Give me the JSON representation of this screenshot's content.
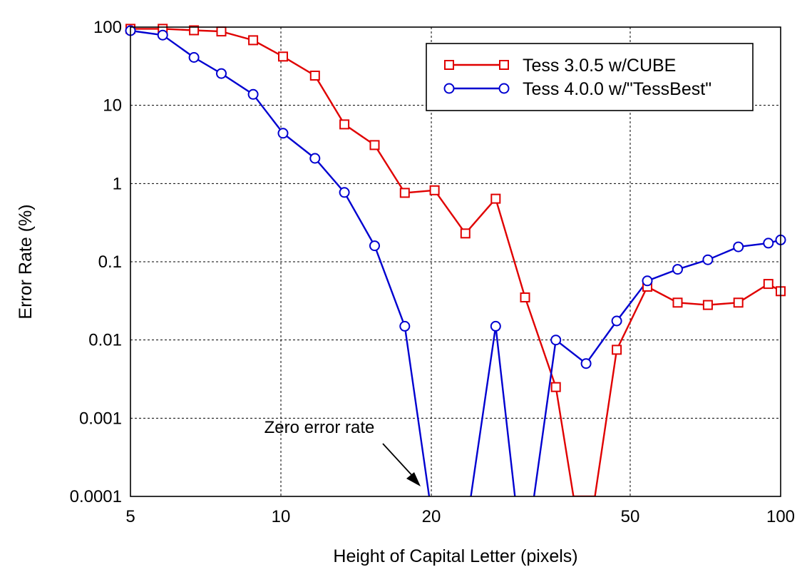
{
  "chart_data": {
    "type": "line",
    "xlabel": "Height of Capital Letter (pixels)",
    "ylabel": "Error Rate (%)",
    "x_scale": "log",
    "y_scale": "log",
    "xlim": [
      5,
      100
    ],
    "ylim": [
      0.0001,
      100
    ],
    "x_ticks": [
      5,
      10,
      20,
      50,
      100
    ],
    "x_tick_labels": [
      "5",
      "10",
      "20",
      "50",
      "100"
    ],
    "y_ticks": [
      0.0001,
      0.001,
      0.01,
      0.1,
      1,
      10,
      100
    ],
    "y_tick_labels": [
      "0.0001",
      "0.001",
      "0.01",
      "0.1",
      "1",
      "10",
      "100"
    ],
    "grid": true,
    "legend_position": "top-right",
    "annotation": {
      "text": "Zero error rate",
      "x": 19.5,
      "y": 0.0001
    },
    "series": [
      {
        "name": "Tess 3.0.5 w/CUBE",
        "color": "#e00000",
        "marker": "square",
        "points": [
          [
            5,
            95
          ],
          [
            5.8,
            95
          ],
          [
            6.7,
            91
          ],
          [
            7.6,
            88
          ],
          [
            8.8,
            68
          ],
          [
            10.1,
            42
          ],
          [
            11.7,
            24
          ],
          [
            13.4,
            5.7
          ],
          [
            15.4,
            3.1
          ],
          [
            17.7,
            0.76
          ],
          [
            20.3,
            0.82
          ],
          [
            23.4,
            0.23
          ],
          [
            26.9,
            0.64
          ],
          [
            30.8,
            0.035
          ],
          [
            35.5,
            0.0025
          ],
          [
            47.0,
            0.0075
          ],
          [
            54.1,
            0.048
          ],
          [
            62.2,
            0.03
          ],
          [
            71.5,
            0.028
          ],
          [
            82.3,
            0.03
          ],
          [
            94.5,
            0.052
          ],
          [
            100,
            0.042
          ]
        ],
        "line_path": [
          [
            5,
            95
          ],
          [
            5.8,
            95
          ],
          [
            6.7,
            91
          ],
          [
            7.6,
            88
          ],
          [
            8.8,
            68
          ],
          [
            10.1,
            42
          ],
          [
            11.7,
            24
          ],
          [
            13.4,
            5.7
          ],
          [
            15.4,
            3.1
          ],
          [
            17.7,
            0.76
          ],
          [
            20.3,
            0.82
          ],
          [
            23.4,
            0.23
          ],
          [
            26.9,
            0.64
          ],
          [
            30.8,
            0.035
          ],
          [
            35.5,
            0.0025
          ],
          [
            38.5,
            0.0001
          ],
          [
            42.5,
            0.0001
          ],
          [
            47.0,
            0.0075
          ],
          [
            54.1,
            0.048
          ],
          [
            62.2,
            0.03
          ],
          [
            71.5,
            0.028
          ],
          [
            82.3,
            0.03
          ],
          [
            94.5,
            0.052
          ],
          [
            100,
            0.042
          ]
        ]
      },
      {
        "name": "Tess 4.0.0 w/\"TessBest\"",
        "color": "#0000d0",
        "marker": "circle",
        "points": [
          [
            5,
            90
          ],
          [
            5.8,
            79
          ],
          [
            6.7,
            41
          ],
          [
            7.6,
            25.5
          ],
          [
            8.8,
            13.8
          ],
          [
            10.1,
            4.4
          ],
          [
            11.7,
            2.1
          ],
          [
            13.4,
            0.77
          ],
          [
            15.4,
            0.16
          ],
          [
            17.7,
            0.015
          ],
          [
            26.9,
            0.015
          ],
          [
            35.5,
            0.01
          ],
          [
            40.8,
            0.005
          ],
          [
            47.0,
            0.0175
          ],
          [
            54.1,
            0.057
          ],
          [
            62.2,
            0.08
          ],
          [
            71.5,
            0.106
          ],
          [
            82.3,
            0.155
          ],
          [
            94.5,
            0.173
          ],
          [
            100,
            0.19
          ]
        ],
        "line_path": [
          [
            5,
            90
          ],
          [
            5.8,
            79
          ],
          [
            6.7,
            41
          ],
          [
            7.6,
            25.5
          ],
          [
            8.8,
            13.8
          ],
          [
            10.1,
            4.4
          ],
          [
            11.7,
            2.1
          ],
          [
            13.4,
            0.77
          ],
          [
            15.4,
            0.16
          ],
          [
            17.7,
            0.015
          ],
          [
            19.8,
            0.0001
          ],
          null,
          [
            24.0,
            0.0001
          ],
          [
            26.9,
            0.015
          ],
          [
            29.4,
            0.0001
          ],
          null,
          [
            32.1,
            0.0001
          ],
          [
            35.5,
            0.01
          ],
          [
            40.8,
            0.005
          ],
          [
            47.0,
            0.0175
          ],
          [
            54.1,
            0.057
          ],
          [
            62.2,
            0.08
          ],
          [
            71.5,
            0.106
          ],
          [
            82.3,
            0.155
          ],
          [
            94.5,
            0.173
          ],
          [
            100,
            0.19
          ]
        ]
      }
    ]
  }
}
